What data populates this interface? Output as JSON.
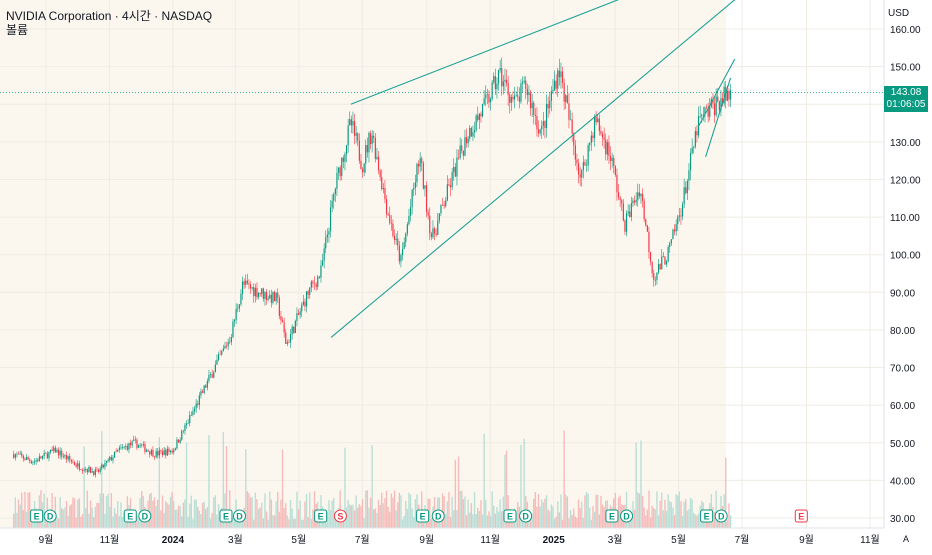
{
  "header": {
    "title": "NVIDIA Corporation · 4시간 · NASDAQ",
    "subtitle": "볼륨"
  },
  "axis_currency": "USD",
  "auto_label": "A",
  "last_price": {
    "price": "143.08",
    "countdown": "01:06:05"
  },
  "colors": {
    "up": "#089981",
    "down": "#f23645",
    "trendline": "#1aa193",
    "plot_bg": "#fbf7ef",
    "volume_up": "#b2dcd4",
    "volume_down": "#f5b5b5",
    "event": "#089981",
    "event_future": "#f23645"
  },
  "chart_data": {
    "type": "candlestick",
    "symbol": "NVIDIA Corporation",
    "interval": "4시간",
    "exchange": "NASDAQ",
    "ylim": [
      28,
      165
    ],
    "y_ticks": [
      "160.00",
      "150.00",
      "140.00",
      "130.00",
      "120.00",
      "110.00",
      "100.00",
      "90.00",
      "80.00",
      "70.00",
      "60.00",
      "50.00",
      "40.00",
      "30.00"
    ],
    "y_tick_values": [
      160,
      150,
      140,
      130,
      120,
      110,
      100,
      90,
      80,
      70,
      60,
      50,
      40,
      30
    ],
    "x_ticks": [
      "9월",
      "11월",
      "2024",
      "3월",
      "5월",
      "7월",
      "9월",
      "11월",
      "2025",
      "3월",
      "5월",
      "7월",
      "9월",
      "11월"
    ],
    "x_tick_dates": [
      "2023-09",
      "2023-11",
      "2024-01",
      "2024-03",
      "2024-05",
      "2024-07",
      "2024-09",
      "2024-11",
      "2025-01",
      "2025-03",
      "2025-05",
      "2025-07",
      "2025-09",
      "2025-11"
    ],
    "last_price": 143.08,
    "price_path": [
      [
        "2023-08-01",
        47
      ],
      [
        "2023-08-20",
        45
      ],
      [
        "2023-09-10",
        48
      ],
      [
        "2023-10-01",
        44
      ],
      [
        "2023-10-20",
        42
      ],
      [
        "2023-11-10",
        48
      ],
      [
        "2023-11-25",
        50
      ],
      [
        "2023-12-15",
        47
      ],
      [
        "2024-01-01",
        48
      ],
      [
        "2024-01-20",
        58
      ],
      [
        "2024-02-10",
        70
      ],
      [
        "2024-02-25",
        78
      ],
      [
        "2024-03-08",
        92
      ],
      [
        "2024-03-25",
        90
      ],
      [
        "2024-04-10",
        88
      ],
      [
        "2024-04-19",
        76
      ],
      [
        "2024-05-10",
        90
      ],
      [
        "2024-05-22",
        95
      ],
      [
        "2024-06-05",
        118
      ],
      [
        "2024-06-20",
        135
      ],
      [
        "2024-07-01",
        124
      ],
      [
        "2024-07-10",
        133
      ],
      [
        "2024-07-25",
        112
      ],
      [
        "2024-08-07",
        98
      ],
      [
        "2024-08-25",
        126
      ],
      [
        "2024-09-06",
        104
      ],
      [
        "2024-09-25",
        120
      ],
      [
        "2024-10-10",
        132
      ],
      [
        "2024-10-28",
        140
      ],
      [
        "2024-11-10",
        148
      ],
      [
        "2024-11-25",
        140
      ],
      [
        "2024-12-05",
        145
      ],
      [
        "2024-12-20",
        132
      ],
      [
        "2025-01-06",
        150
      ],
      [
        "2025-01-27",
        120
      ],
      [
        "2025-02-10",
        136
      ],
      [
        "2025-02-25",
        126
      ],
      [
        "2025-03-10",
        108
      ],
      [
        "2025-03-25",
        118
      ],
      [
        "2025-04-07",
        94
      ],
      [
        "2025-04-22",
        101
      ],
      [
        "2025-05-05",
        114
      ],
      [
        "2025-05-20",
        135
      ],
      [
        "2025-06-05",
        140
      ],
      [
        "2025-06-20",
        143.08
      ]
    ],
    "trendlines": [
      {
        "from": [
          "2024-06-20",
          140
        ],
        "to": [
          "2025-06-25",
          180
        ]
      },
      {
        "from": [
          "2024-06-01",
          78
        ],
        "to": [
          "2025-06-25",
          168
        ]
      },
      {
        "from": [
          "2025-05-20",
          134
        ],
        "to": [
          "2025-06-24",
          152
        ]
      },
      {
        "from": [
          "2025-05-27",
          126
        ],
        "to": [
          "2025-06-20",
          147
        ]
      }
    ],
    "events": [
      {
        "date": "2023-08-23",
        "type": "E"
      },
      {
        "date": "2023-09-05",
        "type": "D"
      },
      {
        "date": "2023-11-21",
        "type": "E"
      },
      {
        "date": "2023-12-05",
        "type": "D"
      },
      {
        "date": "2024-02-21",
        "type": "E"
      },
      {
        "date": "2024-03-05",
        "type": "D"
      },
      {
        "date": "2024-05-22",
        "type": "E"
      },
      {
        "date": "2024-06-10",
        "type": "S"
      },
      {
        "date": "2024-08-28",
        "type": "E"
      },
      {
        "date": "2024-09-12",
        "type": "D"
      },
      {
        "date": "2024-11-20",
        "type": "E"
      },
      {
        "date": "2024-12-05",
        "type": "D"
      },
      {
        "date": "2025-02-26",
        "type": "E"
      },
      {
        "date": "2025-03-12",
        "type": "D"
      },
      {
        "date": "2025-05-28",
        "type": "E"
      },
      {
        "date": "2025-06-11",
        "type": "D"
      },
      {
        "date": "2025-08-27",
        "type": "E",
        "future": true
      }
    ]
  }
}
